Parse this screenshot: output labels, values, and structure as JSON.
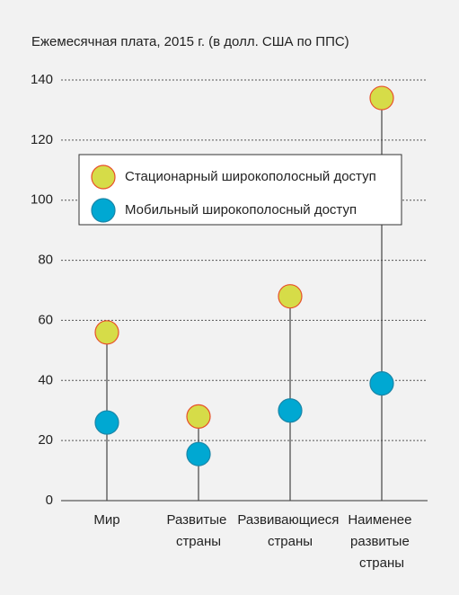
{
  "chart_data": {
    "type": "dot",
    "title": "Ежемесячная плата, 2015 г. (в долл. США по ППС)",
    "categories": [
      "Мир",
      "Развитые страны",
      "Развивающиеся страны",
      "Наименее развитые страны"
    ],
    "series": [
      {
        "name": "Стационарный широкополосный доступ",
        "color": "#d6dc48",
        "values": [
          56,
          28,
          68,
          134
        ]
      },
      {
        "name": "Мобильный широкополосный доступ",
        "color": "#00a8d2",
        "values": [
          26,
          15.5,
          30,
          39
        ]
      }
    ],
    "ylim": [
      0,
      140
    ],
    "yticks": [
      0,
      20,
      40,
      60,
      80,
      100,
      120,
      140
    ],
    "grid": true,
    "legend": "upper left"
  }
}
